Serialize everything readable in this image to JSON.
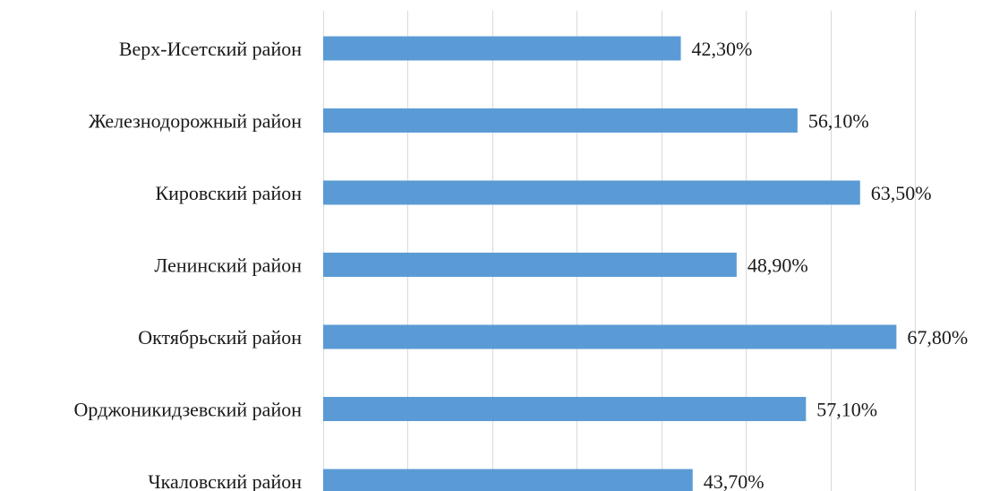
{
  "chart_data": {
    "type": "bar",
    "orientation": "horizontal",
    "categories": [
      "Верх-Исетский район",
      "Железнодорожный район",
      "Кировский район",
      "Ленинский район",
      "Октябрьский район",
      "Орджоникидзевский район",
      "Чкаловский район"
    ],
    "values": [
      42.3,
      56.1,
      63.5,
      48.9,
      67.8,
      57.1,
      43.7
    ],
    "value_labels": [
      "42,30%",
      "56,10%",
      "63,50%",
      "48,90%",
      "67,80%",
      "57,10%",
      "43,70%"
    ],
    "xlim": [
      0,
      70
    ],
    "x_gridlines": [
      0,
      10,
      20,
      30,
      40,
      50,
      60,
      70
    ],
    "grid": true,
    "legend": "none",
    "bar_color": "#5b9bd5"
  }
}
